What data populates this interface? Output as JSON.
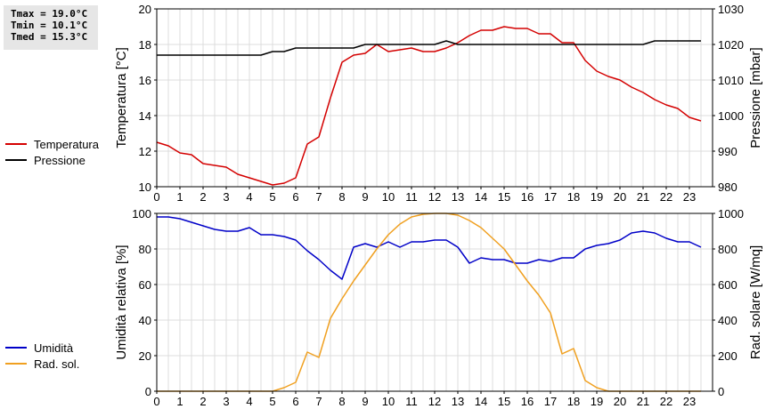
{
  "stats": {
    "tmax": "Tmax = 19.0°C",
    "tmin": "Tmin = 10.1°C",
    "tmed": "Tmed = 15.3°C"
  },
  "chart_data": [
    {
      "type": "line",
      "x_ticks": [
        0,
        1,
        2,
        3,
        4,
        5,
        6,
        7,
        8,
        9,
        10,
        11,
        12,
        13,
        14,
        15,
        16,
        17,
        18,
        19,
        20,
        21,
        22,
        23
      ],
      "xlim": [
        0,
        24
      ],
      "ylabel": "Temperatura [°C]",
      "ylim": [
        10,
        20
      ],
      "y_ticks": [
        10,
        12,
        14,
        16,
        18,
        20
      ],
      "y2label": "Pressione [mbar]",
      "y2lim": [
        980,
        1030
      ],
      "y2_ticks": [
        980,
        990,
        1000,
        1010,
        1020,
        1030
      ],
      "grid": true,
      "legend": "left",
      "series": [
        {
          "name": "Temperatura",
          "color": "#d40000",
          "axis": "left",
          "x": [
            0,
            0.5,
            1,
            1.5,
            2,
            2.5,
            3,
            3.5,
            4,
            4.5,
            5,
            5.5,
            6,
            6.5,
            7,
            7.5,
            8,
            8.5,
            9,
            9.5,
            10,
            10.5,
            11,
            11.5,
            12,
            12.5,
            13,
            13.5,
            14,
            14.5,
            15,
            15.5,
            16,
            16.5,
            17,
            17.5,
            18,
            18.5,
            19,
            19.5,
            20,
            20.5,
            21,
            21.5,
            22,
            22.5,
            23,
            23.5
          ],
          "y": [
            12.5,
            12.3,
            11.9,
            11.8,
            11.3,
            11.2,
            11.1,
            10.7,
            10.5,
            10.3,
            10.1,
            10.2,
            10.5,
            12.4,
            12.8,
            15.0,
            17.0,
            17.4,
            17.5,
            18.0,
            17.6,
            17.7,
            17.8,
            17.6,
            17.6,
            17.8,
            18.1,
            18.5,
            18.8,
            18.8,
            19.0,
            18.9,
            18.9,
            18.6,
            18.6,
            18.1,
            18.1,
            17.1,
            16.5,
            16.2,
            16.0,
            15.6,
            15.3,
            14.9,
            14.6,
            14.4,
            13.9,
            13.7
          ]
        },
        {
          "name": "Pressione",
          "color": "#000000",
          "axis": "right",
          "x": [
            0,
            0.5,
            1,
            1.5,
            2,
            2.5,
            3,
            3.5,
            4,
            4.5,
            5,
            5.5,
            6,
            6.5,
            7,
            7.5,
            8,
            8.5,
            9,
            9.5,
            10,
            10.5,
            11,
            11.5,
            12,
            12.5,
            13,
            13.5,
            14,
            14.5,
            15,
            15.5,
            16,
            16.5,
            17,
            17.5,
            18,
            18.5,
            19,
            19.5,
            20,
            20.5,
            21,
            21.5,
            22,
            22.5,
            23,
            23.5
          ],
          "y": [
            1017,
            1017,
            1017,
            1017,
            1017,
            1017,
            1017,
            1017,
            1017,
            1017,
            1018,
            1018,
            1019,
            1019,
            1019,
            1019,
            1019,
            1019,
            1020,
            1020,
            1020,
            1020,
            1020,
            1020,
            1020,
            1021,
            1020,
            1020,
            1020,
            1020,
            1020,
            1020,
            1020,
            1020,
            1020,
            1020,
            1020,
            1020,
            1020,
            1020,
            1020,
            1020,
            1020,
            1021,
            1021,
            1021,
            1021,
            1021
          ]
        }
      ]
    },
    {
      "type": "line",
      "x_ticks": [
        0,
        1,
        2,
        3,
        4,
        5,
        6,
        7,
        8,
        9,
        10,
        11,
        12,
        13,
        14,
        15,
        16,
        17,
        18,
        19,
        20,
        21,
        22,
        23
      ],
      "xlim": [
        0,
        24
      ],
      "ylabel": "Umidità relativa [%]",
      "ylim": [
        0,
        100
      ],
      "y_ticks": [
        0,
        20,
        40,
        60,
        80,
        100
      ],
      "y2label": "Rad. solare [W/mq]",
      "y2lim": [
        0,
        1000
      ],
      "y2_ticks": [
        0,
        200,
        400,
        600,
        800,
        1000
      ],
      "grid": true,
      "legend": "left",
      "series": [
        {
          "name": "Umidità",
          "color": "#0000c8",
          "axis": "left",
          "x": [
            0,
            0.5,
            1,
            1.5,
            2,
            2.5,
            3,
            3.5,
            4,
            4.5,
            5,
            5.5,
            6,
            6.5,
            7,
            7.5,
            8,
            8.5,
            9,
            9.5,
            10,
            10.5,
            11,
            11.5,
            12,
            12.5,
            13,
            13.5,
            14,
            14.5,
            15,
            15.5,
            16,
            16.5,
            17,
            17.5,
            18,
            18.5,
            19,
            19.5,
            20,
            20.5,
            21,
            21.5,
            22,
            22.5,
            23,
            23.5
          ],
          "y": [
            98,
            98,
            97,
            95,
            93,
            91,
            90,
            90,
            92,
            88,
            88,
            87,
            85,
            79,
            74,
            68,
            63,
            81,
            83,
            81,
            84,
            81,
            84,
            84,
            85,
            85,
            81,
            72,
            75,
            74,
            74,
            72,
            72,
            74,
            73,
            75,
            75,
            80,
            82,
            83,
            85,
            89,
            90,
            89,
            86,
            84,
            84,
            81
          ]
        },
        {
          "name": "Rad. sol.",
          "color": "#f0a020",
          "axis": "right",
          "x": [
            0,
            0.5,
            1,
            1.5,
            2,
            2.5,
            3,
            3.5,
            4,
            4.5,
            5,
            5.5,
            6,
            6.5,
            7,
            7.5,
            8,
            8.5,
            9,
            9.5,
            10,
            10.5,
            11,
            11.5,
            12,
            12.5,
            13,
            13.5,
            14,
            14.5,
            15,
            15.5,
            16,
            16.5,
            17,
            17.5,
            18,
            18.5,
            19,
            19.5,
            20,
            20.5,
            21,
            21.5,
            22,
            22.5,
            23,
            23.5
          ],
          "y": [
            0,
            0,
            0,
            0,
            0,
            0,
            0,
            0,
            0,
            0,
            0,
            20,
            50,
            220,
            190,
            410,
            520,
            620,
            710,
            800,
            880,
            940,
            980,
            995,
            1000,
            1000,
            990,
            960,
            920,
            860,
            800,
            710,
            620,
            540,
            440,
            210,
            240,
            60,
            20,
            0,
            0,
            0,
            0,
            0,
            0,
            0,
            0,
            0
          ]
        }
      ]
    }
  ]
}
